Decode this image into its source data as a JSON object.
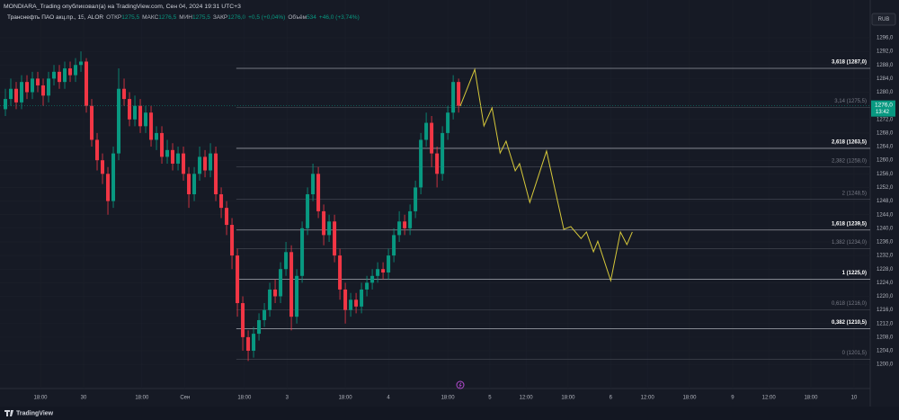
{
  "header": {
    "publisher": "MONDIARA_Trading опубликовал(а) на TradingView.com, Сен 04, 2024 19:31 UTC+3",
    "symbol": "Транснефть ПАО акц.пр., 15, ALOR",
    "ohlc": [
      {
        "label": "ОТКР",
        "value": "1275,5"
      },
      {
        "label": "МАКС",
        "value": "1276,5"
      },
      {
        "label": "МИН",
        "value": "1275,5"
      },
      {
        "label": "ЗАКР",
        "value": "1276,0"
      }
    ],
    "change": "+0,5 (+0,04%)",
    "volume_label": "Объём",
    "volume": "534",
    "volume_change": "+46,0 (+3,74%)",
    "currency": "RUB",
    "brand": "TradingView"
  },
  "chart_data": {
    "type": "candlestick",
    "x": [
      1,
      2,
      3,
      4,
      5,
      6,
      7,
      8,
      9,
      10,
      11,
      12,
      13,
      14,
      15,
      16,
      17,
      18,
      19,
      20,
      21,
      22,
      23,
      24,
      25,
      26,
      27,
      28,
      29,
      30,
      31,
      32,
      33,
      34,
      35,
      36,
      37,
      38,
      39,
      40,
      41,
      42,
      43,
      44,
      45,
      46,
      47,
      48,
      49,
      50,
      51,
      52,
      53,
      54,
      55,
      56,
      57,
      58,
      59,
      60,
      61,
      62,
      63,
      64,
      65,
      66,
      67,
      68,
      69,
      70,
      71,
      72,
      73,
      74,
      75,
      76,
      77,
      78,
      79,
      80,
      81,
      82,
      83,
      84,
      85
    ],
    "open": [
      1275,
      1278,
      1281,
      1277,
      1283,
      1280,
      1284,
      1282,
      1279,
      1284,
      1286,
      1283,
      1287,
      1285,
      1288,
      1289,
      1276,
      1266,
      1260,
      1256,
      1248,
      1262,
      1281,
      1278,
      1272,
      1276,
      1270,
      1274,
      1266,
      1268,
      1261,
      1263,
      1259,
      1262,
      1256,
      1250,
      1256,
      1261,
      1257,
      1262,
      1250,
      1246,
      1241,
      1232,
      1218,
      1208,
      1204,
      1209,
      1213,
      1216,
      1222,
      1220,
      1228,
      1233,
      1214,
      1226,
      1240,
      1250,
      1256,
      1245,
      1238,
      1242,
      1232,
      1222,
      1216,
      1219,
      1217,
      1222,
      1224,
      1226,
      1228,
      1227,
      1232,
      1238,
      1242,
      1240,
      1245,
      1252,
      1266,
      1271,
      1262,
      1256,
      1268,
      1274,
      1283
    ],
    "high": [
      1281,
      1284,
      1283,
      1285,
      1285,
      1286,
      1286,
      1284,
      1286,
      1288,
      1288,
      1289,
      1289,
      1290,
      1292,
      1290,
      1278,
      1268,
      1262,
      1258,
      1264,
      1287,
      1284,
      1280,
      1279,
      1278,
      1276,
      1276,
      1270,
      1270,
      1266,
      1265,
      1264,
      1264,
      1258,
      1258,
      1264,
      1263,
      1265,
      1264,
      1252,
      1248,
      1243,
      1234,
      1220,
      1210,
      1211,
      1215,
      1218,
      1224,
      1225,
      1230,
      1236,
      1235,
      1228,
      1242,
      1252,
      1259,
      1258,
      1247,
      1244,
      1244,
      1234,
      1224,
      1221,
      1221,
      1224,
      1226,
      1228,
      1230,
      1230,
      1234,
      1240,
      1245,
      1244,
      1247,
      1254,
      1268,
      1274,
      1273,
      1264,
      1270,
      1276,
      1285,
      1284
    ],
    "low": [
      1273,
      1276,
      1275,
      1275,
      1278,
      1278,
      1280,
      1276,
      1277,
      1282,
      1281,
      1281,
      1283,
      1283,
      1286,
      1274,
      1264,
      1257,
      1253,
      1244,
      1246,
      1260,
      1276,
      1270,
      1270,
      1268,
      1268,
      1264,
      1263,
      1259,
      1259,
      1257,
      1257,
      1254,
      1246,
      1248,
      1254,
      1255,
      1255,
      1248,
      1243,
      1238,
      1228,
      1214,
      1204,
      1201,
      1202,
      1207,
      1211,
      1214,
      1218,
      1218,
      1226,
      1210,
      1212,
      1224,
      1238,
      1248,
      1243,
      1235,
      1236,
      1230,
      1219,
      1212,
      1214,
      1215,
      1215,
      1220,
      1222,
      1224,
      1225,
      1225,
      1230,
      1236,
      1238,
      1238,
      1243,
      1250,
      1264,
      1258,
      1252,
      1254,
      1266,
      1272,
      1274
    ],
    "close": [
      1278,
      1281,
      1277,
      1283,
      1280,
      1284,
      1282,
      1279,
      1284,
      1286,
      1283,
      1287,
      1285,
      1288,
      1289,
      1276,
      1266,
      1260,
      1256,
      1248,
      1262,
      1281,
      1278,
      1272,
      1276,
      1270,
      1274,
      1266,
      1268,
      1261,
      1263,
      1259,
      1262,
      1256,
      1250,
      1256,
      1261,
      1257,
      1262,
      1250,
      1246,
      1241,
      1232,
      1218,
      1208,
      1204,
      1209,
      1213,
      1216,
      1222,
      1220,
      1228,
      1233,
      1214,
      1226,
      1240,
      1250,
      1256,
      1245,
      1238,
      1242,
      1232,
      1222,
      1216,
      1219,
      1217,
      1222,
      1224,
      1226,
      1228,
      1227,
      1232,
      1238,
      1242,
      1240,
      1245,
      1252,
      1266,
      1271,
      1262,
      1256,
      1268,
      1274,
      1283,
      1276
    ],
    "up_color": "#089981",
    "down_color": "#f23645",
    "projection": {
      "color": "#d6c83a",
      "x": [
        85.3,
        88,
        89.7,
        91.2,
        92.7,
        93.8,
        95.5,
        96.3,
        98.2,
        101.3,
        104.5,
        105.8,
        107.7,
        108.7,
        110,
        110.8,
        113.2,
        115,
        116.2,
        117.2
      ],
      "values": [
        1275.9,
        1286.7,
        1270.1,
        1275.4,
        1262.1,
        1265.6,
        1256.9,
        1259.0,
        1247.6,
        1262.7,
        1239.7,
        1240.5,
        1237.0,
        1238.9,
        1233.1,
        1236.2,
        1224.6,
        1238.9,
        1235.2,
        1238.9
      ]
    },
    "fib_start_x": 43.8,
    "fib_levels": [
      {
        "label": "3,618 (1287,0)",
        "value": 1287,
        "emphasis": true
      },
      {
        "label": "3,14 (1275,5)",
        "value": 1275.5,
        "emphasis": false
      },
      {
        "label": "2,618 (1263,5)",
        "value": 1263.5,
        "emphasis": true
      },
      {
        "label": "2,382 (1258,0)",
        "value": 1258,
        "emphasis": false
      },
      {
        "label": "2 (1248,5)",
        "value": 1248.5,
        "emphasis": false
      },
      {
        "label": "1,618 (1239,5)",
        "value": 1239.5,
        "emphasis": true
      },
      {
        "label": "1,382 (1234,0)",
        "value": 1234,
        "emphasis": false
      },
      {
        "label": "1 (1225,0)",
        "value": 1225,
        "emphasis": true
      },
      {
        "label": "0,618 (1216,0)",
        "value": 1216,
        "emphasis": false
      },
      {
        "label": "0,382 (1210,5)",
        "value": 1210.5,
        "emphasis": true
      },
      {
        "label": "0 (1201,5)",
        "value": 1201.5,
        "emphasis": false
      }
    ],
    "last_price": {
      "value": 1276,
      "label": "1276,0"
    },
    "countdown": "13:42",
    "xlim": [
      0,
      161.3
    ],
    "ylim": [
      1192.9,
      1307.1
    ],
    "xticks": [
      {
        "value": 7.5,
        "label": "18:00"
      },
      {
        "value": 15.5,
        "label": "30"
      },
      {
        "value": 26.3,
        "label": "18:00"
      },
      {
        "value": 34.3,
        "label": "Сен"
      },
      {
        "value": 45.3,
        "label": "18:00"
      },
      {
        "value": 53.2,
        "label": "3"
      },
      {
        "value": 64,
        "label": "18:00"
      },
      {
        "value": 72,
        "label": "4"
      },
      {
        "value": 83,
        "label": "18:00"
      },
      {
        "value": 90.8,
        "label": "5"
      },
      {
        "value": 97.5,
        "label": "12:00"
      },
      {
        "value": 105.3,
        "label": "18:00"
      },
      {
        "value": 113.2,
        "label": "6"
      },
      {
        "value": 120,
        "label": "12:00"
      },
      {
        "value": 127.8,
        "label": "18:00"
      },
      {
        "value": 135.8,
        "label": "9"
      },
      {
        "value": 142.5,
        "label": "12:00"
      },
      {
        "value": 150.3,
        "label": "18:00"
      },
      {
        "value": 158.3,
        "label": "10"
      }
    ],
    "yticks": [
      {
        "value": 1200,
        "label": "1200,0"
      },
      {
        "value": 1204,
        "label": "1204,0"
      },
      {
        "value": 1208,
        "label": "1208,0"
      },
      {
        "value": 1212,
        "label": "1212,0"
      },
      {
        "value": 1216,
        "label": "1216,0"
      },
      {
        "value": 1220,
        "label": "1220,0"
      },
      {
        "value": 1224,
        "label": "1224,0"
      },
      {
        "value": 1228,
        "label": "1228,0"
      },
      {
        "value": 1232,
        "label": "1232,0"
      },
      {
        "value": 1236,
        "label": "1236,0"
      },
      {
        "value": 1240,
        "label": "1240,0"
      },
      {
        "value": 1244,
        "label": "1244,0"
      },
      {
        "value": 1248,
        "label": "1248,0"
      },
      {
        "value": 1252,
        "label": "1252,0"
      },
      {
        "value": 1256,
        "label": "1256,0"
      },
      {
        "value": 1260,
        "label": "1260,0"
      },
      {
        "value": 1264,
        "label": "1264,0"
      },
      {
        "value": 1268,
        "label": "1268,0"
      },
      {
        "value": 1272,
        "label": "1272,0"
      },
      {
        "value": 1280,
        "label": "1280,0"
      },
      {
        "value": 1284,
        "label": "1284,0"
      },
      {
        "value": 1288,
        "label": "1288,0"
      },
      {
        "value": 1292,
        "label": "1292,0"
      },
      {
        "value": 1296,
        "label": "1296,0"
      }
    ],
    "grid": true
  }
}
